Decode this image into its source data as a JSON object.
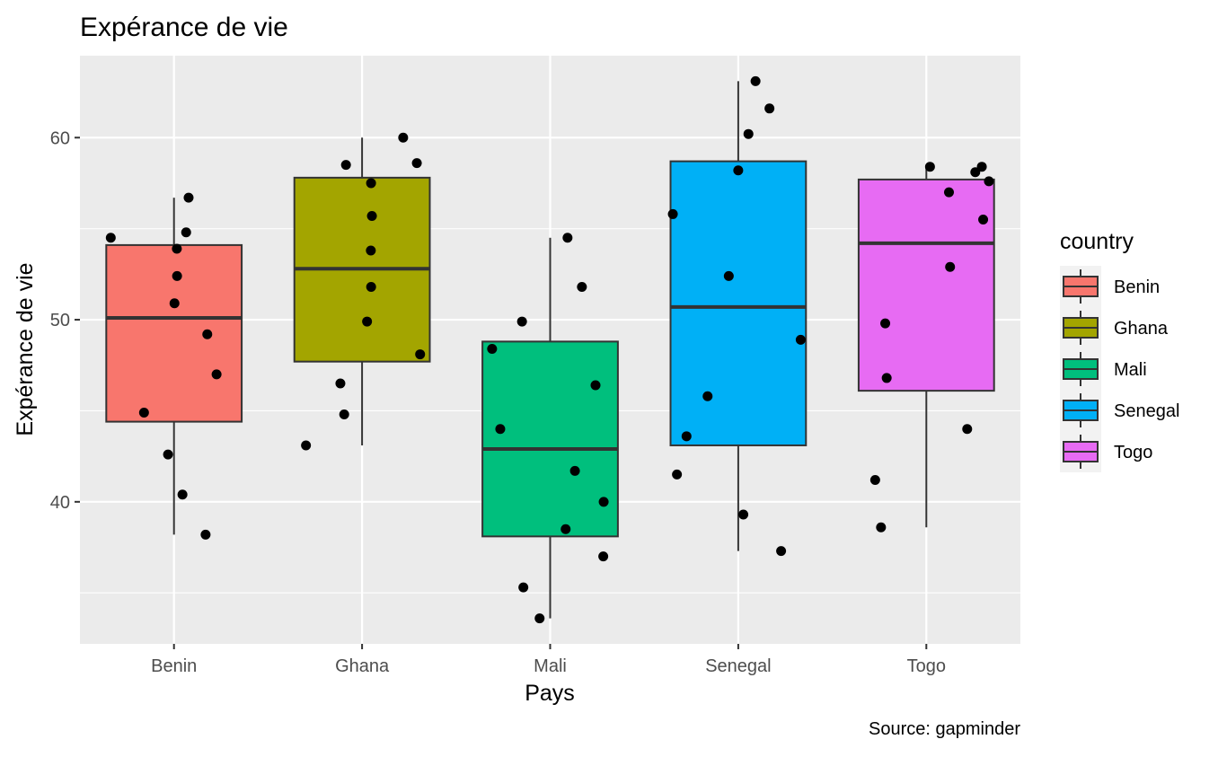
{
  "chart_data": {
    "type": "boxplot",
    "title": "Expérance de vie",
    "xlabel": "Pays",
    "ylabel": "Expérance de vie",
    "caption": "Source: gapminder",
    "categories": [
      "Benin",
      "Ghana",
      "Mali",
      "Senegal",
      "Togo"
    ],
    "ylim": [
      32.2,
      64.5
    ],
    "yticks": [
      40,
      50,
      60
    ],
    "grid": true,
    "legend": {
      "title": "country",
      "position": "right",
      "entries": [
        "Benin",
        "Ghana",
        "Mali",
        "Senegal",
        "Togo"
      ]
    },
    "colors": {
      "Benin": "#F8766D",
      "Ghana": "#A3A500",
      "Mali": "#00BF7D",
      "Senegal": "#00B0F6",
      "Togo": "#E76BF3",
      "panel_background": "#EBEBEB",
      "grid": "#FFFFFF",
      "box_outline": "#333333",
      "points": "#000000"
    },
    "boxes": [
      {
        "category": "Benin",
        "min": 38.2,
        "q1": 44.4,
        "median": 50.1,
        "q3": 54.1,
        "max": 56.7
      },
      {
        "category": "Ghana",
        "min": 43.1,
        "q1": 47.7,
        "median": 52.8,
        "q3": 57.8,
        "max": 60.0
      },
      {
        "category": "Mali",
        "min": 33.6,
        "q1": 38.1,
        "median": 42.9,
        "q3": 48.8,
        "max": 54.5
      },
      {
        "category": "Senegal",
        "min": 37.3,
        "q1": 43.1,
        "median": 50.7,
        "q3": 58.7,
        "max": 63.1
      },
      {
        "category": "Togo",
        "min": 38.6,
        "q1": 46.1,
        "median": 54.2,
        "q3": 57.7,
        "max": 58.4
      }
    ],
    "points": [
      {
        "category": "Benin",
        "values": [
          38.2,
          40.4,
          42.6,
          44.9,
          47.0,
          49.2,
          50.9,
          52.4,
          53.9,
          54.5,
          54.8,
          56.7
        ]
      },
      {
        "category": "Ghana",
        "values": [
          43.1,
          44.8,
          46.5,
          48.1,
          49.9,
          51.8,
          53.8,
          55.7,
          57.5,
          58.5,
          58.6,
          60.0
        ]
      },
      {
        "category": "Mali",
        "values": [
          33.6,
          35.3,
          37.0,
          38.5,
          40.0,
          41.7,
          44.0,
          46.4,
          48.4,
          49.9,
          51.8,
          54.5
        ]
      },
      {
        "category": "Senegal",
        "values": [
          37.3,
          39.3,
          41.5,
          43.6,
          45.8,
          48.9,
          52.4,
          55.8,
          58.2,
          60.2,
          61.6,
          63.1
        ]
      },
      {
        "category": "Togo",
        "values": [
          38.6,
          41.2,
          44.0,
          46.8,
          49.8,
          52.9,
          55.5,
          57.0,
          57.6,
          58.1,
          58.4,
          58.4
        ]
      }
    ]
  }
}
